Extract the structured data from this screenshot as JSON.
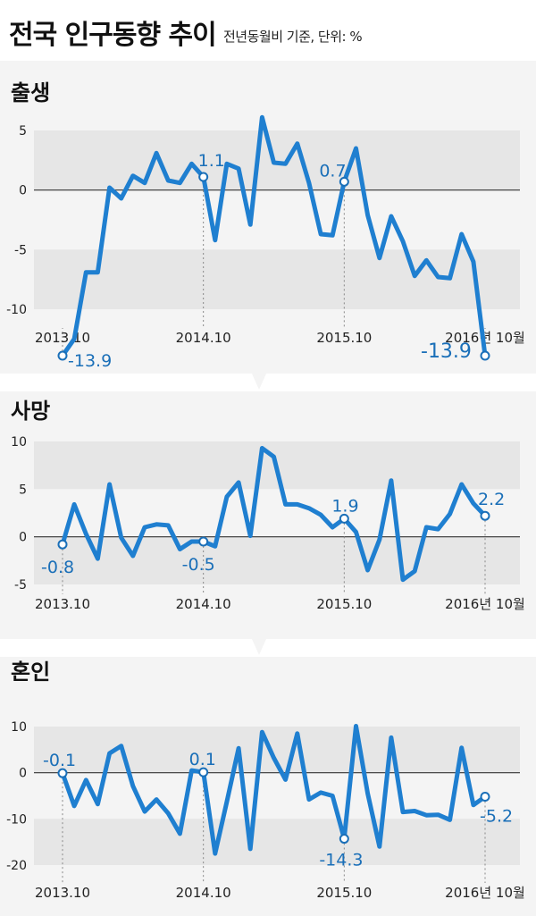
{
  "header": {
    "title": "전국 인구동향 추이",
    "subtitle": "전년동월비 기준, 단위: %"
  },
  "colors": {
    "line": "#1f7fd0",
    "label": "#1a6fb8",
    "band": "#e6e6e6",
    "panel_bg": "#f4f4f4"
  },
  "chart_data": [
    {
      "type": "line",
      "title": "출생",
      "ylim": [
        -15,
        6.5
      ],
      "yticks": [
        5,
        0,
        -5,
        -10
      ],
      "x_tick_labels": [
        "2013.10",
        "2014.10",
        "2015.10",
        "2016년 10월"
      ],
      "x_tick_index": [
        0,
        12,
        24,
        36
      ],
      "values": [
        -13.9,
        -12.5,
        -6.9,
        -6.9,
        0.2,
        -0.7,
        1.2,
        0.6,
        3.1,
        0.8,
        0.6,
        2.2,
        1.1,
        -4.2,
        2.2,
        1.8,
        -2.9,
        6.1,
        2.3,
        2.2,
        3.9,
        0.6,
        -3.7,
        -3.8,
        0.7,
        3.5,
        -2.1,
        -5.7,
        -2.2,
        -4.3,
        -7.2,
        -5.9,
        -7.3,
        -7.4,
        -3.7,
        -6.0,
        -13.9
      ],
      "annotations": [
        {
          "index": 0,
          "text": "-13.9"
        },
        {
          "index": 12,
          "text": "1.1"
        },
        {
          "index": 24,
          "text": "0.7"
        },
        {
          "index": 36,
          "text": "-13.9"
        }
      ]
    },
    {
      "type": "line",
      "title": "사망",
      "ylim": [
        -5,
        10.5
      ],
      "yticks": [
        10,
        5,
        0,
        -5
      ],
      "x_tick_labels": [
        "2013.10",
        "2014.10",
        "2015.10",
        "2016년 10월"
      ],
      "x_tick_index": [
        0,
        12,
        24,
        36
      ],
      "values": [
        -0.8,
        3.4,
        0.3,
        -2.3,
        5.5,
        -0.1,
        -2.0,
        1.0,
        1.3,
        1.2,
        -1.3,
        -0.5,
        -0.5,
        -1.0,
        4.2,
        5.7,
        0.1,
        9.3,
        8.4,
        3.4,
        3.4,
        3.0,
        2.3,
        1.0,
        1.9,
        0.5,
        -3.5,
        -0.3,
        5.9,
        -4.5,
        -3.6,
        1.0,
        0.8,
        2.4,
        5.5,
        3.5,
        2.2
      ],
      "annotations": [
        {
          "index": 0,
          "text": "-0.8"
        },
        {
          "index": 12,
          "text": "-0.5"
        },
        {
          "index": 24,
          "text": "1.9"
        },
        {
          "index": 36,
          "text": "2.2"
        }
      ]
    },
    {
      "type": "line",
      "title": "혼인",
      "ylim": [
        -21,
        12
      ],
      "yticks": [
        10,
        0,
        -10,
        -20
      ],
      "x_tick_labels": [
        "2013.10",
        "2014.10",
        "2015.10",
        "2016년 10월"
      ],
      "x_tick_index": [
        0,
        12,
        24,
        36
      ],
      "values": [
        -0.1,
        -7.2,
        -1.6,
        -6.8,
        4.2,
        5.8,
        -2.9,
        -8.4,
        -5.8,
        -8.8,
        -13.2,
        0.5,
        0.1,
        -17.5,
        -6.3,
        5.3,
        -16.5,
        8.8,
        3.2,
        -1.5,
        8.5,
        -5.8,
        -4.3,
        -5.0,
        -14.3,
        10.1,
        -4.5,
        -16.0,
        7.6,
        -8.5,
        -8.3,
        -9.2,
        -9.1,
        -10.2,
        5.4,
        -7.0,
        -5.2
      ],
      "annotations": [
        {
          "index": 0,
          "text": "-0.1"
        },
        {
          "index": 12,
          "text": "0.1"
        },
        {
          "index": 24,
          "text": "-14.3"
        },
        {
          "index": 36,
          "text": "-5.2"
        }
      ]
    }
  ]
}
